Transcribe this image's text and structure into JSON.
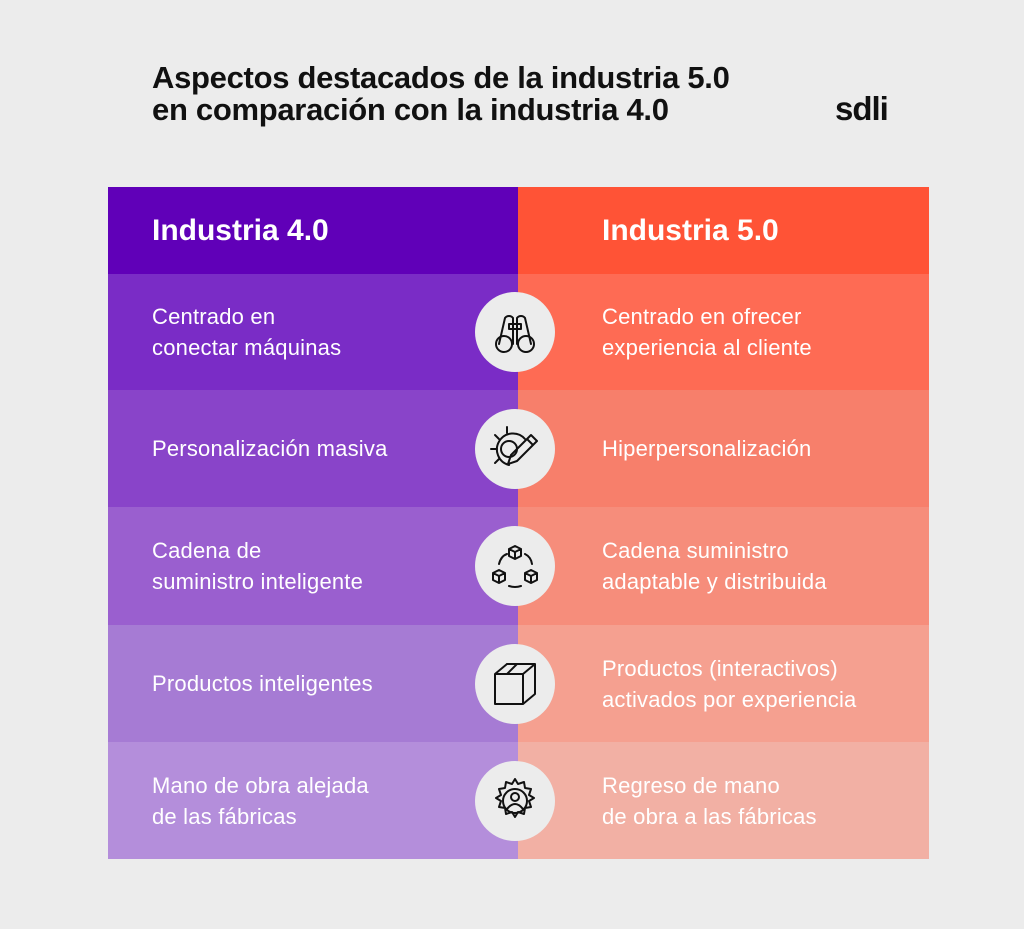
{
  "title": {
    "line1": "Aspectos destacados de la industria 5.0",
    "line2": "en comparación con la industria 4.0"
  },
  "logo": "sdli",
  "headers": {
    "left": "Industria 4.0",
    "right": "Industria 5.0"
  },
  "colors": {
    "left": [
      "#6000b8",
      "#7a2cc6",
      "#8944c9",
      "#9a5fcf",
      "#a67bd4",
      "#b48edb"
    ],
    "right": [
      "#ff5336",
      "#fe6b54",
      "#f77f6b",
      "#f68d7b",
      "#f5a090",
      "#f2b0a4"
    ]
  },
  "rows": [
    {
      "left": "Centrado en\nconectar máquinas",
      "right": "Centrado en ofrecer\nexperiencia al cliente",
      "icon": "binoculars-icon"
    },
    {
      "left": "Personalización masiva",
      "right": "Hiperpersonalización",
      "icon": "gear-pencil-icon"
    },
    {
      "left": "Cadena de\nsuministro inteligente",
      "right": "Cadena suministro\nadaptable y distribuida",
      "icon": "supply-cycle-icon"
    },
    {
      "left": "Productos inteligentes",
      "right": "Productos (interactivos)\nactivados por experiencia",
      "icon": "box-icon"
    },
    {
      "left": "Mano de obra alejada\nde las fábricas",
      "right": "Regreso de mano\nde obra a las fábricas",
      "icon": "gear-person-icon"
    }
  ]
}
